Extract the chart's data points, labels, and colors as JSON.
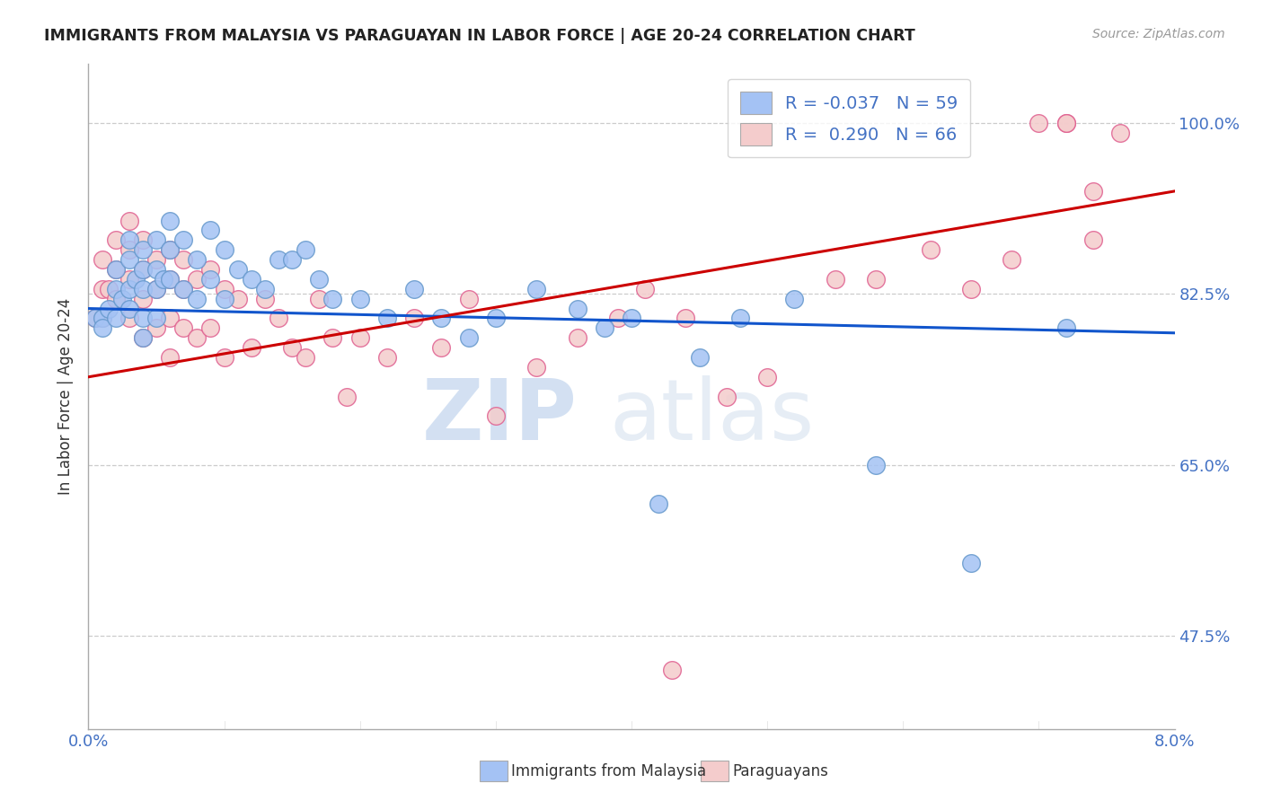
{
  "title": "IMMIGRANTS FROM MALAYSIA VS PARAGUAYAN IN LABOR FORCE | AGE 20-24 CORRELATION CHART",
  "source": "Source: ZipAtlas.com",
  "ylabel": "In Labor Force | Age 20-24",
  "ytick_labels": [
    "100.0%",
    "82.5%",
    "65.0%",
    "47.5%"
  ],
  "ytick_values": [
    1.0,
    0.825,
    0.65,
    0.475
  ],
  "xmin": 0.0,
  "xmax": 0.08,
  "ymin": 0.38,
  "ymax": 1.06,
  "legend_entry1_r": "R = -0.037",
  "legend_entry1_n": "N = 59",
  "legend_entry2_r": "R =  0.290",
  "legend_entry2_n": "N = 66",
  "color_blue": "#a4c2f4",
  "color_pink": "#f4cccc",
  "color_line_blue": "#1155cc",
  "color_line_pink": "#cc0000",
  "watermark_zip": "ZIP",
  "watermark_atlas": "atlas",
  "blue_scatter_x": [
    0.0005,
    0.001,
    0.001,
    0.0015,
    0.002,
    0.002,
    0.002,
    0.0025,
    0.003,
    0.003,
    0.003,
    0.003,
    0.0035,
    0.004,
    0.004,
    0.004,
    0.004,
    0.004,
    0.005,
    0.005,
    0.005,
    0.005,
    0.0055,
    0.006,
    0.006,
    0.006,
    0.007,
    0.007,
    0.008,
    0.008,
    0.009,
    0.009,
    0.01,
    0.01,
    0.011,
    0.012,
    0.013,
    0.014,
    0.015,
    0.016,
    0.017,
    0.018,
    0.02,
    0.022,
    0.024,
    0.026,
    0.028,
    0.03,
    0.033,
    0.036,
    0.038,
    0.04,
    0.042,
    0.045,
    0.048,
    0.052,
    0.058,
    0.065,
    0.072
  ],
  "blue_scatter_y": [
    0.8,
    0.8,
    0.79,
    0.81,
    0.85,
    0.83,
    0.8,
    0.82,
    0.88,
    0.86,
    0.83,
    0.81,
    0.84,
    0.87,
    0.85,
    0.83,
    0.8,
    0.78,
    0.88,
    0.85,
    0.83,
    0.8,
    0.84,
    0.9,
    0.87,
    0.84,
    0.88,
    0.83,
    0.86,
    0.82,
    0.89,
    0.84,
    0.87,
    0.82,
    0.85,
    0.84,
    0.83,
    0.86,
    0.86,
    0.87,
    0.84,
    0.82,
    0.82,
    0.8,
    0.83,
    0.8,
    0.78,
    0.8,
    0.83,
    0.81,
    0.79,
    0.8,
    0.61,
    0.76,
    0.8,
    0.82,
    0.65,
    0.55,
    0.79
  ],
  "pink_scatter_x": [
    0.0005,
    0.001,
    0.001,
    0.001,
    0.0015,
    0.002,
    0.002,
    0.002,
    0.003,
    0.003,
    0.003,
    0.003,
    0.004,
    0.004,
    0.004,
    0.004,
    0.005,
    0.005,
    0.005,
    0.006,
    0.006,
    0.006,
    0.006,
    0.007,
    0.007,
    0.007,
    0.008,
    0.008,
    0.009,
    0.009,
    0.01,
    0.01,
    0.011,
    0.012,
    0.013,
    0.014,
    0.015,
    0.016,
    0.017,
    0.018,
    0.019,
    0.02,
    0.022,
    0.024,
    0.026,
    0.028,
    0.03,
    0.033,
    0.036,
    0.039,
    0.041,
    0.044,
    0.047,
    0.05,
    0.043,
    0.055,
    0.058,
    0.062,
    0.065,
    0.068,
    0.07,
    0.072,
    0.074,
    0.076,
    0.072,
    0.074
  ],
  "pink_scatter_y": [
    0.8,
    0.86,
    0.83,
    0.8,
    0.83,
    0.88,
    0.85,
    0.82,
    0.9,
    0.87,
    0.84,
    0.8,
    0.88,
    0.85,
    0.82,
    0.78,
    0.86,
    0.83,
    0.79,
    0.87,
    0.84,
    0.8,
    0.76,
    0.86,
    0.83,
    0.79,
    0.84,
    0.78,
    0.85,
    0.79,
    0.83,
    0.76,
    0.82,
    0.77,
    0.82,
    0.8,
    0.77,
    0.76,
    0.82,
    0.78,
    0.72,
    0.78,
    0.76,
    0.8,
    0.77,
    0.82,
    0.7,
    0.75,
    0.78,
    0.8,
    0.83,
    0.8,
    0.72,
    0.74,
    0.44,
    0.84,
    0.84,
    0.87,
    0.83,
    0.86,
    1.0,
    1.0,
    0.88,
    0.99,
    1.0,
    0.93
  ],
  "blue_line_x": [
    0.0,
    0.08
  ],
  "blue_line_y": [
    0.81,
    0.785
  ],
  "pink_line_x": [
    0.0,
    0.08
  ],
  "pink_line_y": [
    0.74,
    0.93
  ]
}
